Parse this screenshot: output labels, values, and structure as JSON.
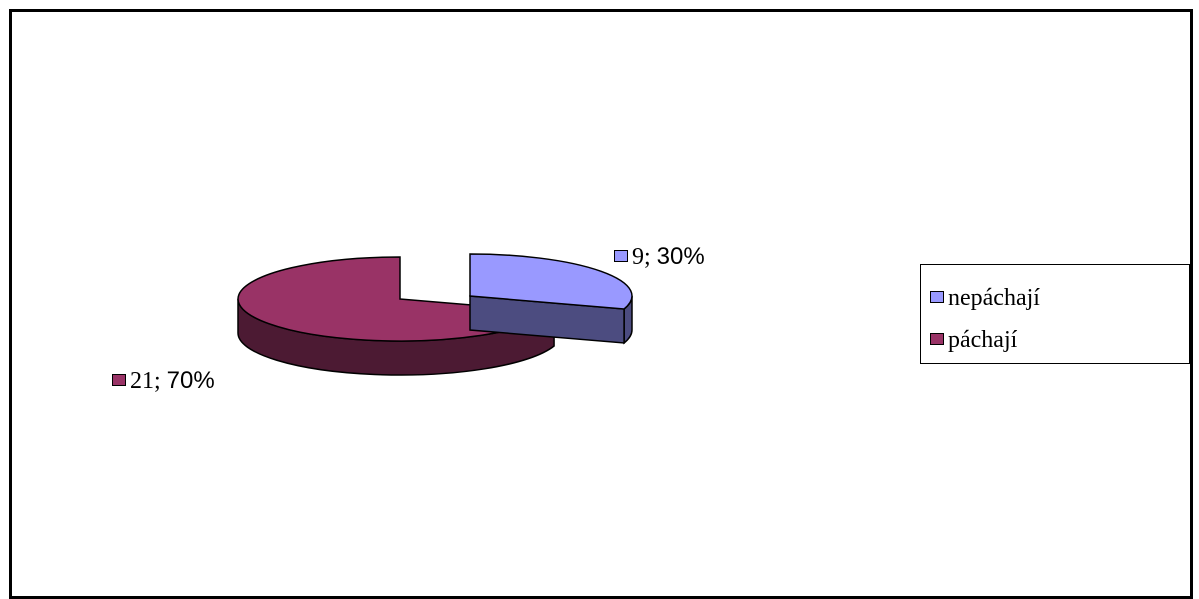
{
  "chart_data": {
    "type": "pie",
    "title": "",
    "categories": [
      "nepáchají",
      "páchají"
    ],
    "values": [
      9,
      21
    ],
    "percentages": [
      30,
      70
    ],
    "colors": {
      "nepáchají": {
        "top": "#9999ff",
        "side": "#4c4c80"
      },
      "páchají": {
        "top": "#993366",
        "side": "#4c1a33"
      }
    },
    "data_labels": [
      {
        "count": "9",
        "percent": "30%"
      },
      {
        "count": "21",
        "percent": "70%"
      }
    ],
    "legend": {
      "placement": "right",
      "entries": [
        "nepáchají",
        "páchají"
      ]
    },
    "style": "3d-exploded"
  }
}
